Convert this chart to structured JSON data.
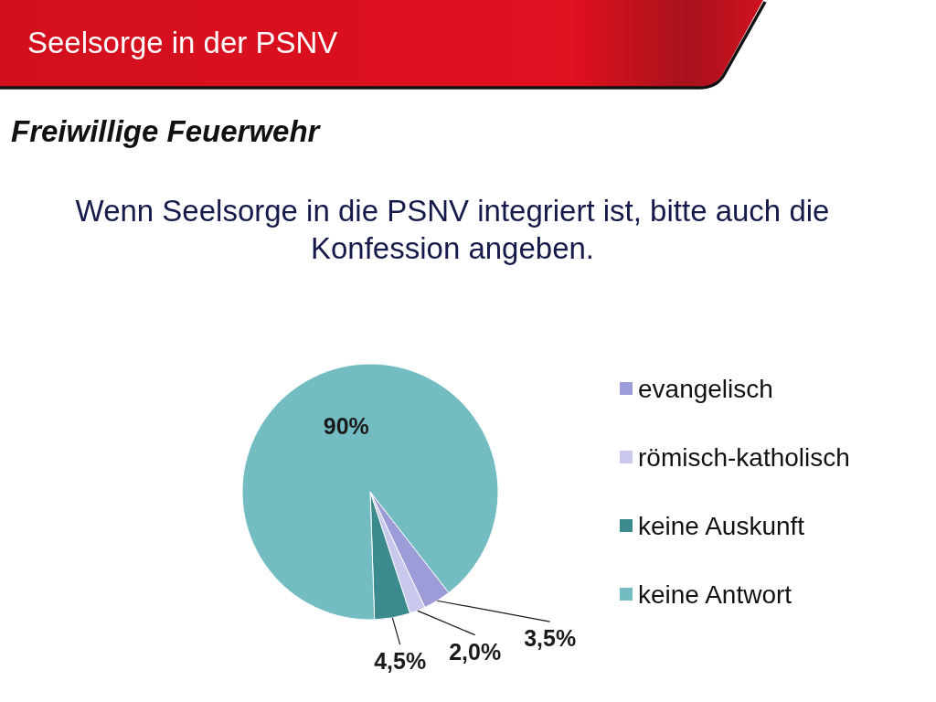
{
  "chart_data": {
    "type": "pie",
    "title": "Seelsorge in der PSNV",
    "subtitle": "Freiwillige Feuerwehr",
    "annotations": [
      "Wenn Seelsorge in die PSNV integriert ist, bitte auch die Konfession angeben."
    ],
    "categories": [
      "evangelisch",
      "römisch-katholisch",
      "keine Auskunft",
      "keine Antwort"
    ],
    "values": [
      3.5,
      2.0,
      4.5,
      90
    ],
    "colors": [
      "#9c9cd8",
      "#c8c8ec",
      "#3b8a8e",
      "#72bcc2"
    ],
    "value_labels": [
      "3,5%",
      "2,0%",
      "4,5%",
      "90%"
    ],
    "legend": "right"
  }
}
